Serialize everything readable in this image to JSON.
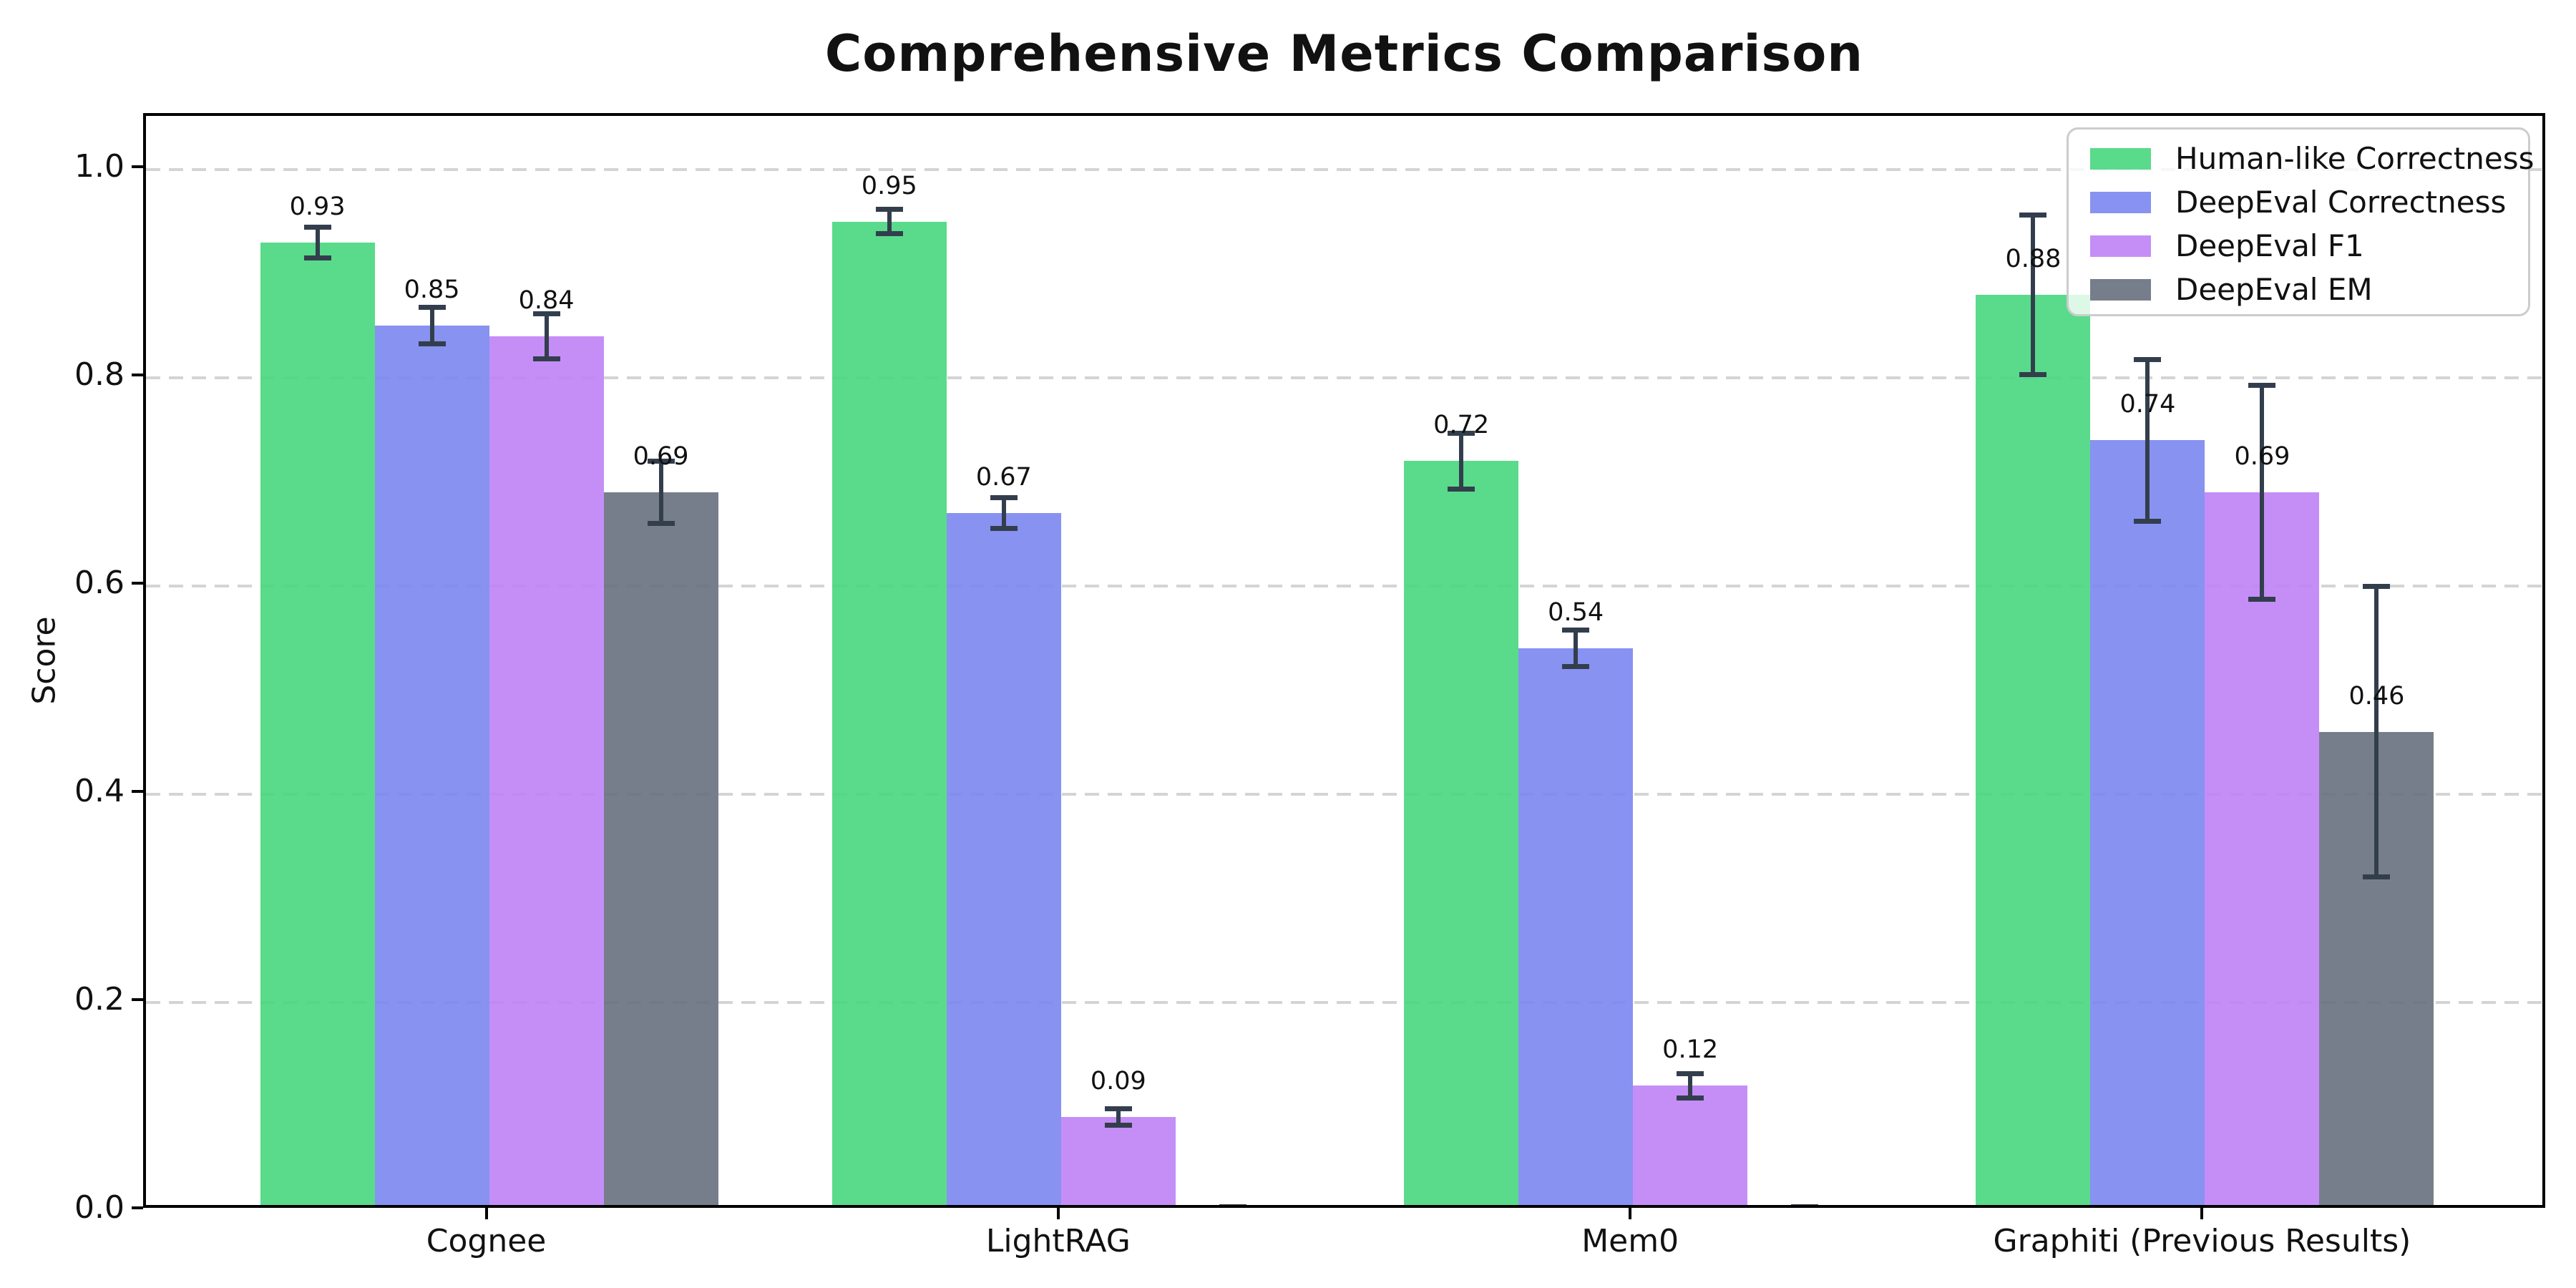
{
  "title": "Comprehensive Metrics Comparison",
  "chart_data": {
    "type": "bar",
    "title": "Comprehensive Metrics Comparison",
    "xlabel": "",
    "ylabel": "Score",
    "ylim": [
      0,
      1.05
    ],
    "yticks": [
      0.0,
      0.2,
      0.4,
      0.6,
      0.8,
      1.0
    ],
    "ytick_labels": [
      "0.0",
      "0.2",
      "0.4",
      "0.6",
      "0.8",
      "1.0"
    ],
    "grid": "horizontal-dashed",
    "legend_position": "upper-right",
    "categories": [
      "Cognee",
      "LightRAG",
      "Mem0",
      "Graphiti (Previous Results)"
    ],
    "series": [
      {
        "name": "Human-like Correctness",
        "color": "#47d77e",
        "values": [
          0.93,
          0.95,
          0.72,
          0.88
        ],
        "errors": [
          0.015,
          0.012,
          0.027,
          0.077
        ],
        "value_labels": [
          "0.93",
          "0.95",
          "0.72",
          "0.88"
        ]
      },
      {
        "name": "DeepEval Correctness",
        "color": "#7b86ef",
        "values": [
          0.85,
          0.67,
          0.54,
          0.74
        ],
        "errors": [
          0.018,
          0.015,
          0.018,
          0.078
        ],
        "value_labels": [
          "0.85",
          "0.67",
          "0.54",
          "0.74"
        ]
      },
      {
        "name": "DeepEval F1",
        "color": "#bf82f5",
        "values": [
          0.84,
          0.09,
          0.12,
          0.69
        ],
        "errors": [
          0.022,
          0.008,
          0.012,
          0.103
        ],
        "value_labels": [
          "0.84",
          "0.09",
          "0.12",
          "0.69"
        ]
      },
      {
        "name": "DeepEval EM",
        "color": "#67707e",
        "values": [
          0.69,
          0.0,
          0.0,
          0.46
        ],
        "errors": [
          0.03,
          0.004,
          0.004,
          0.14
        ],
        "value_labels": [
          "0.69",
          "",
          "",
          "0.46"
        ]
      }
    ],
    "error_bar_color": "#333e4d",
    "colors": {
      "grid": "#d4d4d4",
      "axis": "#000000",
      "text": "#111111",
      "legend_border": "#cccccc"
    }
  }
}
